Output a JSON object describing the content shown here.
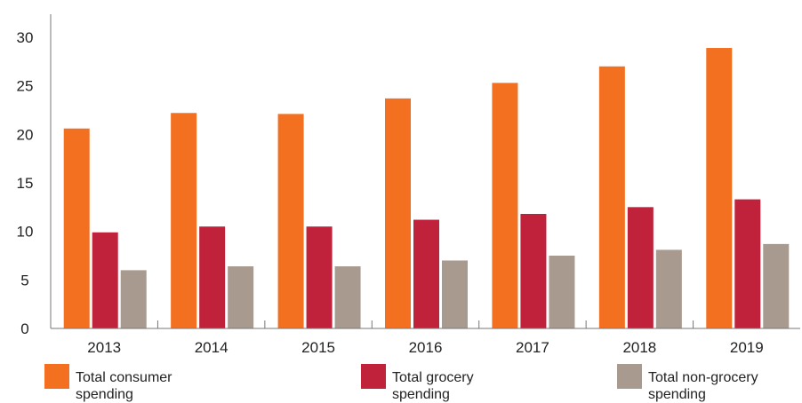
{
  "chart_data": {
    "type": "bar",
    "title": "",
    "xlabel": "",
    "ylabel": "",
    "categories": [
      "2013",
      "2014",
      "2015",
      "2016",
      "2017",
      "2018",
      "2019"
    ],
    "ylim": [
      0,
      30
    ],
    "yticks": [
      0,
      5,
      10,
      15,
      20,
      25,
      30
    ],
    "grid": false,
    "legend_position": "bottom",
    "series": [
      {
        "name": "Total consumer spending",
        "color": "#f37021",
        "values": [
          20.6,
          22.2,
          22.1,
          23.7,
          25.3,
          27.0,
          28.9
        ]
      },
      {
        "name": "Total grocery spending",
        "color": "#c0223b",
        "values": [
          9.9,
          10.5,
          10.5,
          11.2,
          11.8,
          12.5,
          13.3
        ]
      },
      {
        "name": "Total non-grocery spending",
        "color": "#a89a8e",
        "values": [
          6.0,
          6.4,
          6.4,
          7.0,
          7.5,
          8.1,
          8.7
        ]
      }
    ]
  }
}
